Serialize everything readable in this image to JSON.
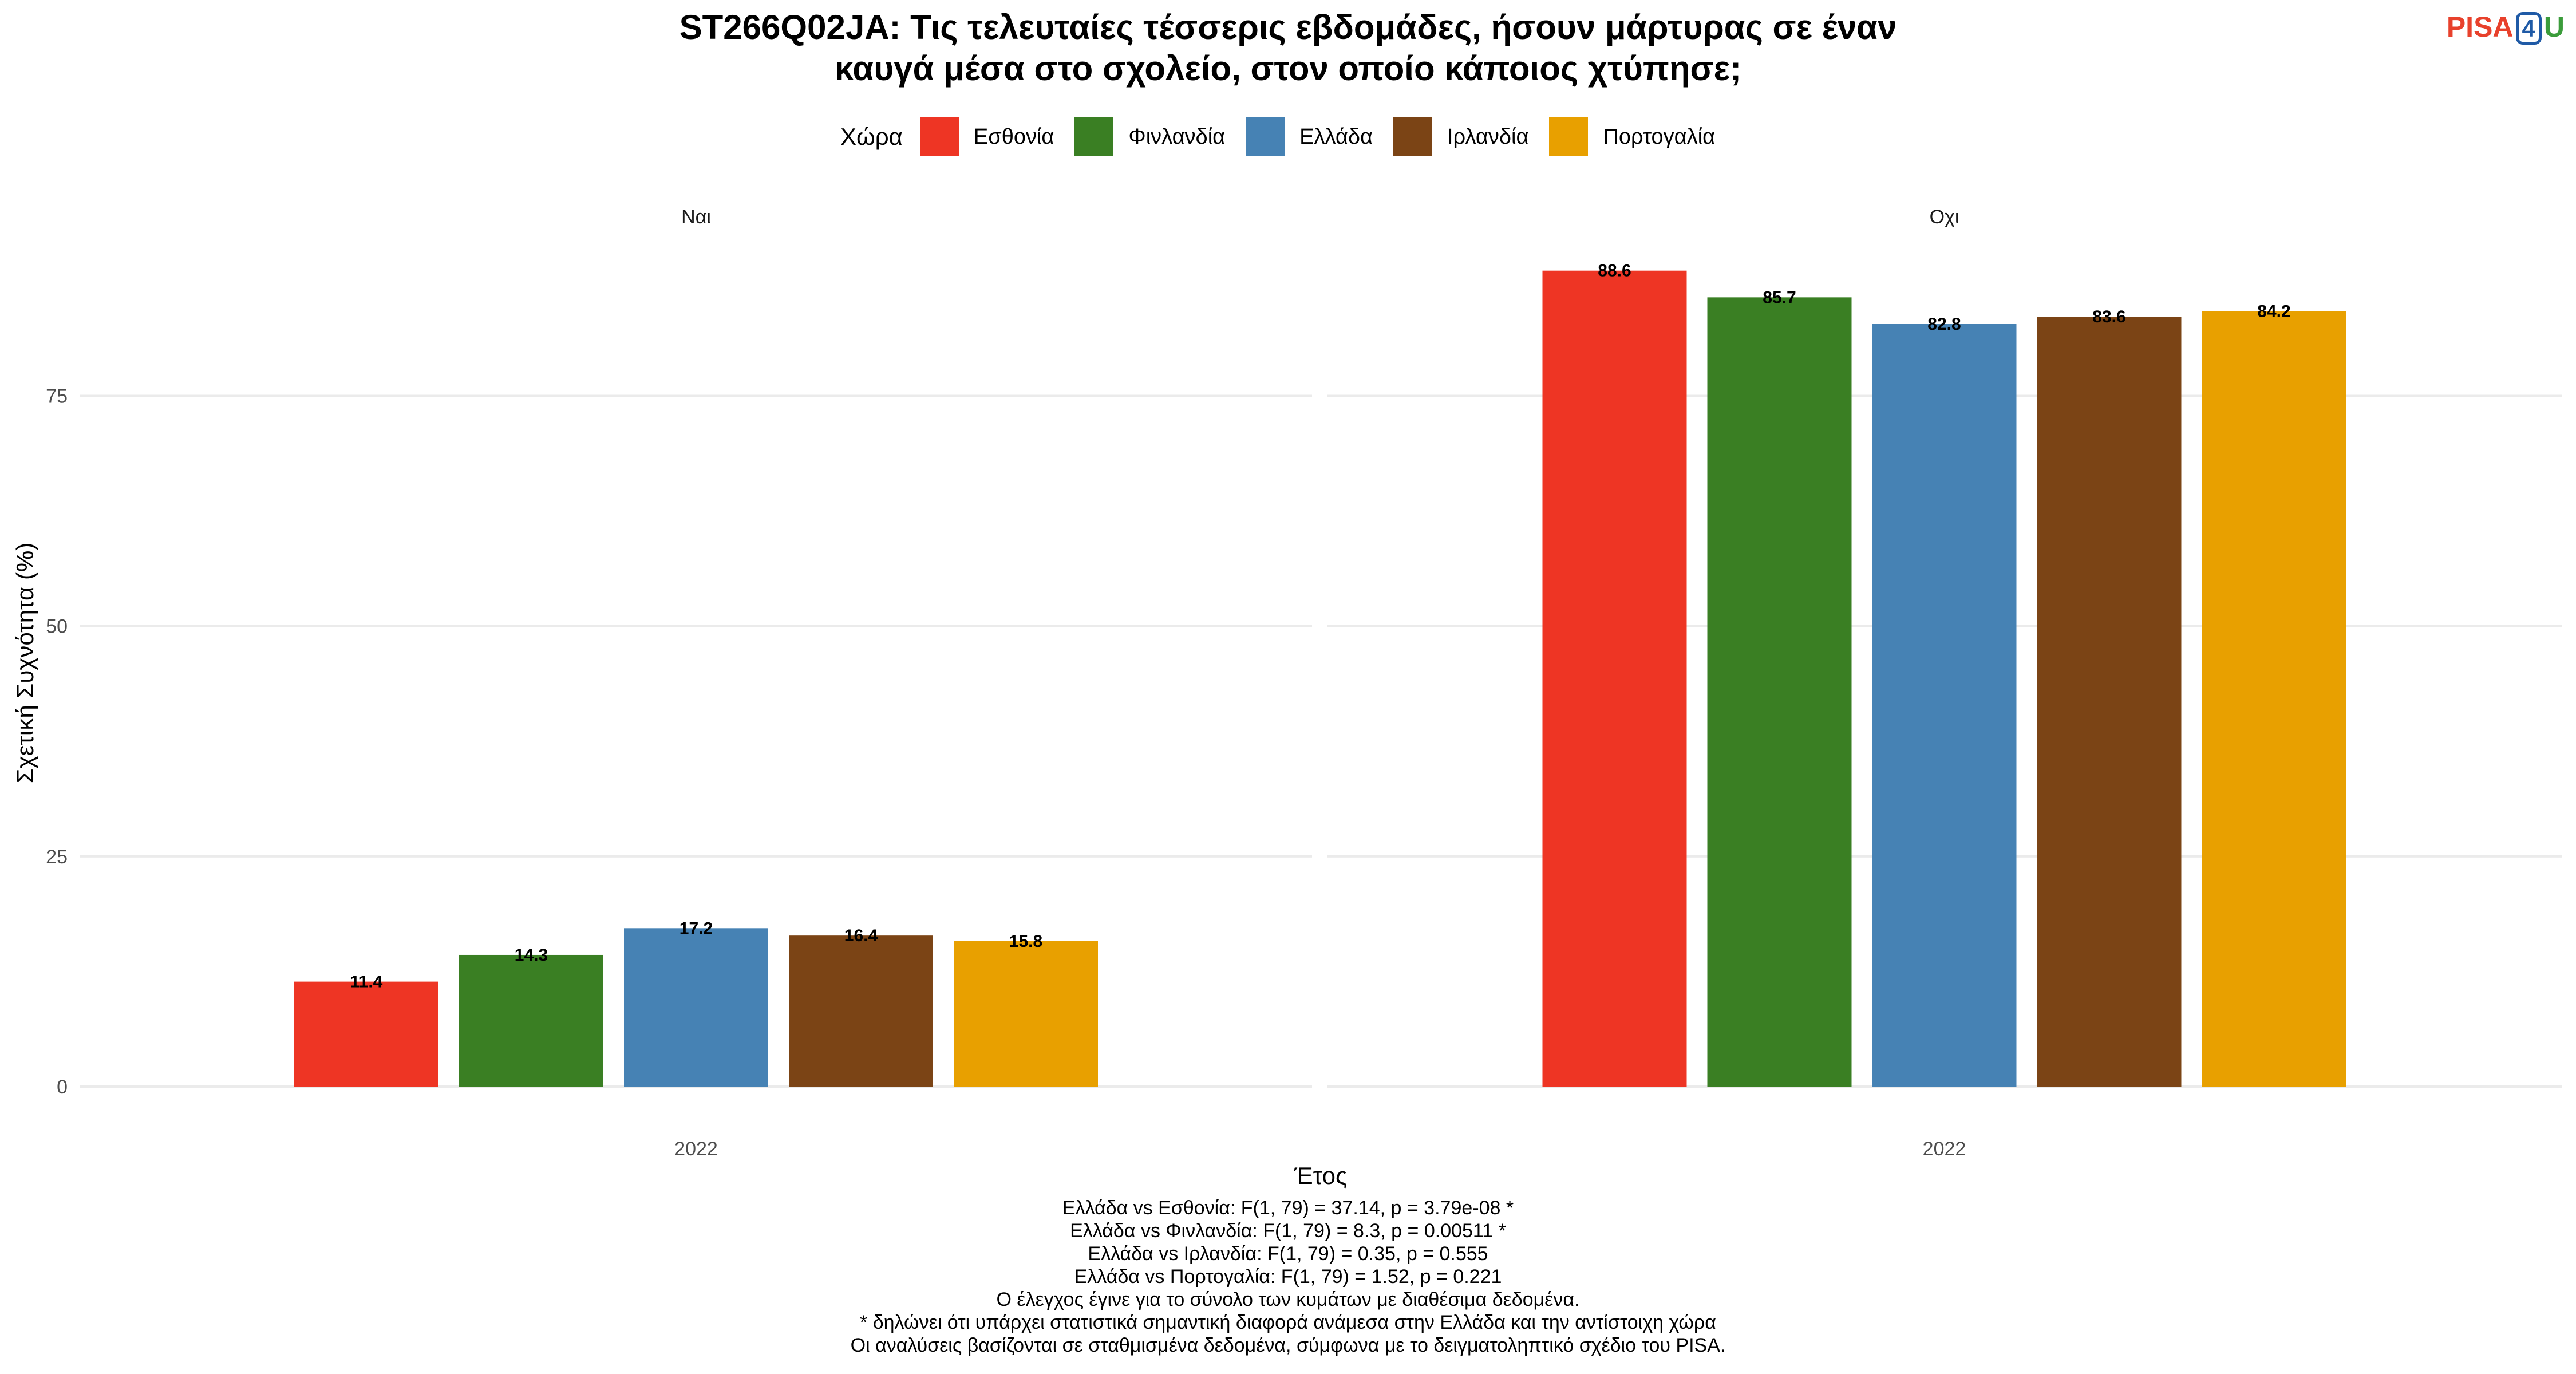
{
  "logo": {
    "part1": "PISA",
    "part2": "4",
    "part3": "U"
  },
  "legend": {
    "title": "Χώρα"
  },
  "colors": {
    "Εσθονία": "#EE3524",
    "Φινλανδία": "#3A7F23",
    "Ελλάδα": "#4682B4",
    "Ιρλανδία": "#7B4415",
    "Πορτογαλία": "#E8A000"
  },
  "chart_data": {
    "type": "bar",
    "title": "ST266Q02JA: Τις τελευταίες τέσσερις εβδομάδες, ήσουν μάρτυρας σε έναν καυγά μέσα στο σχολείο, στον οποίο κάποιος χτύπησε;",
    "title_lines": [
      "ST266Q02JA: Τις τελευταίες τέσσερις εβδομάδες, ήσουν μάρτυρας σε έναν",
      "καυγά μέσα στο σχολείο, στον οποίο κάποιος χτύπησε;"
    ],
    "xlabel": "Έτος",
    "ylabel": "Σχετική Συχνότητα (%)",
    "ylim": [
      0,
      92
    ],
    "yticks": [
      0,
      25,
      50,
      75
    ],
    "grid": true,
    "legend_position": "top",
    "categories": [
      "2022"
    ],
    "series_names": [
      "Εσθονία",
      "Φινλανδία",
      "Ελλάδα",
      "Ιρλανδία",
      "Πορτογαλία"
    ],
    "panels": [
      {
        "label": "Ναι",
        "x": "2022",
        "values": [
          11.4,
          14.3,
          17.2,
          16.4,
          15.8
        ]
      },
      {
        "label": "Οχι",
        "x": "2022",
        "values": [
          88.6,
          85.7,
          82.8,
          83.6,
          84.2
        ]
      }
    ]
  },
  "notes": [
    "Ελλάδα vs Εσθονία: F(1, 79) = 37.14, p = 3.79e-08 *",
    "Ελλάδα vs Φινλανδία: F(1, 79) = 8.3, p = 0.00511 *",
    "Ελλάδα vs Ιρλανδία: F(1, 79) = 0.35, p = 0.555",
    "Ελλάδα vs Πορτογαλία: F(1, 79) = 1.52, p = 0.221",
    "Ο έλεγχος έγινε για το σύνολο των κυμάτων με διαθέσιμα δεδομένα.",
    "* δηλώνει ότι υπάρχει στατιστικά σημαντική διαφορά ανάμεσα στην Ελλάδα και την αντίστοιχη χώρα",
    "Οι αναλύσεις βασίζονται σε σταθμισμένα δεδομένα, σύμφωνα με το δειγματοληπτικό σχέδιο του PISA."
  ]
}
